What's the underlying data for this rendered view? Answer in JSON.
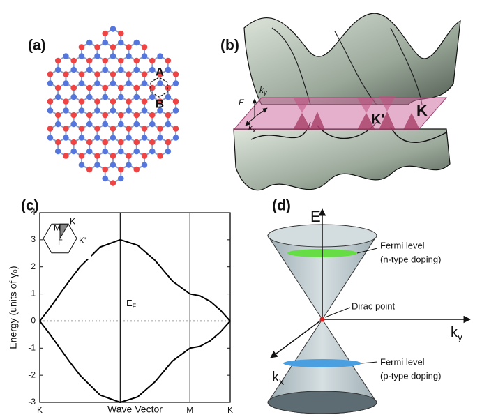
{
  "panel_labels": [
    "(a)",
    "(b)",
    "(c)",
    "(d)"
  ],
  "lattice_labels": [
    "A",
    "B"
  ],
  "band_plot_labels": {
    "E": "E",
    "ky": {
      "main": "k",
      "sub": "y"
    },
    "kx": {
      "main": "k",
      "sub": "x"
    },
    "K_prime": "K'",
    "K": "K"
  },
  "cone_labels": {
    "E": "E",
    "ky": {
      "main": "k",
      "sub": "y"
    },
    "kx": {
      "main": "k",
      "sub": "x"
    },
    "fermi_n": [
      "Fermi level",
      "(n-type doping)"
    ],
    "dirac": "Dirac point",
    "fermi_p": [
      "Fermi level",
      "(p-type doping)"
    ]
  },
  "chart_data": {
    "type": "line",
    "xlabel": "Wave Vector",
    "ylabel": "Energy (units of γ₀)",
    "x": [
      0,
      0.167,
      0.333,
      0.5,
      0.667,
      1.0,
      1.333,
      1.622,
      1.911,
      2.199,
      2.488,
      2.655,
      2.822,
      2.988,
      3.155
    ],
    "series": [
      {
        "color": "#000000",
        "values": [
          0,
          0.482,
          1,
          1.518,
          2,
          2.732,
          3,
          2.798,
          2.236,
          1.474,
          1,
          0.932,
          0.732,
          0.414,
          0
        ]
      },
      {
        "color": "#000000",
        "values": [
          0,
          -0.482,
          -1,
          -1.518,
          -2,
          -2.732,
          -3,
          -2.798,
          -2.236,
          -1.474,
          -1,
          -0.932,
          -0.732,
          -0.414,
          0
        ]
      }
    ],
    "xlim": [
      0,
      3.155
    ],
    "xticks": [
      {
        "value": 0,
        "label": "K"
      },
      {
        "value": 1.333,
        "label": "Γ"
      },
      {
        "value": 2.488,
        "label": "M"
      },
      {
        "value": 3.155,
        "label": "K"
      }
    ],
    "ylim": [
      -3,
      4
    ],
    "yticks": [
      -3,
      -2,
      -1,
      0,
      1,
      2,
      3,
      4
    ],
    "hline": 0,
    "annotation": {
      "main": "E",
      "sub": "F"
    },
    "inset_labels": [
      "M",
      "K",
      "Γ",
      "K'"
    ]
  }
}
